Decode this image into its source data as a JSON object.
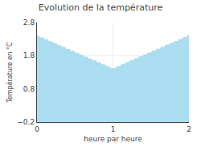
{
  "chart_data": {
    "type": "area",
    "title": "Evolution de la température",
    "x_label": "heure par heure",
    "y_label": "Température en °C",
    "x": [
      0,
      1,
      2
    ],
    "values": [
      2.4,
      1.4,
      2.4
    ],
    "color": "#aaddf0",
    "line_style": "dotted",
    "xlim": [
      0,
      2
    ],
    "ylim": [
      -0.2,
      2.8
    ],
    "xticks": [
      0,
      1,
      2
    ],
    "yticks": [
      -0.2,
      0.8,
      1.8,
      2.8
    ],
    "grid": true
  }
}
